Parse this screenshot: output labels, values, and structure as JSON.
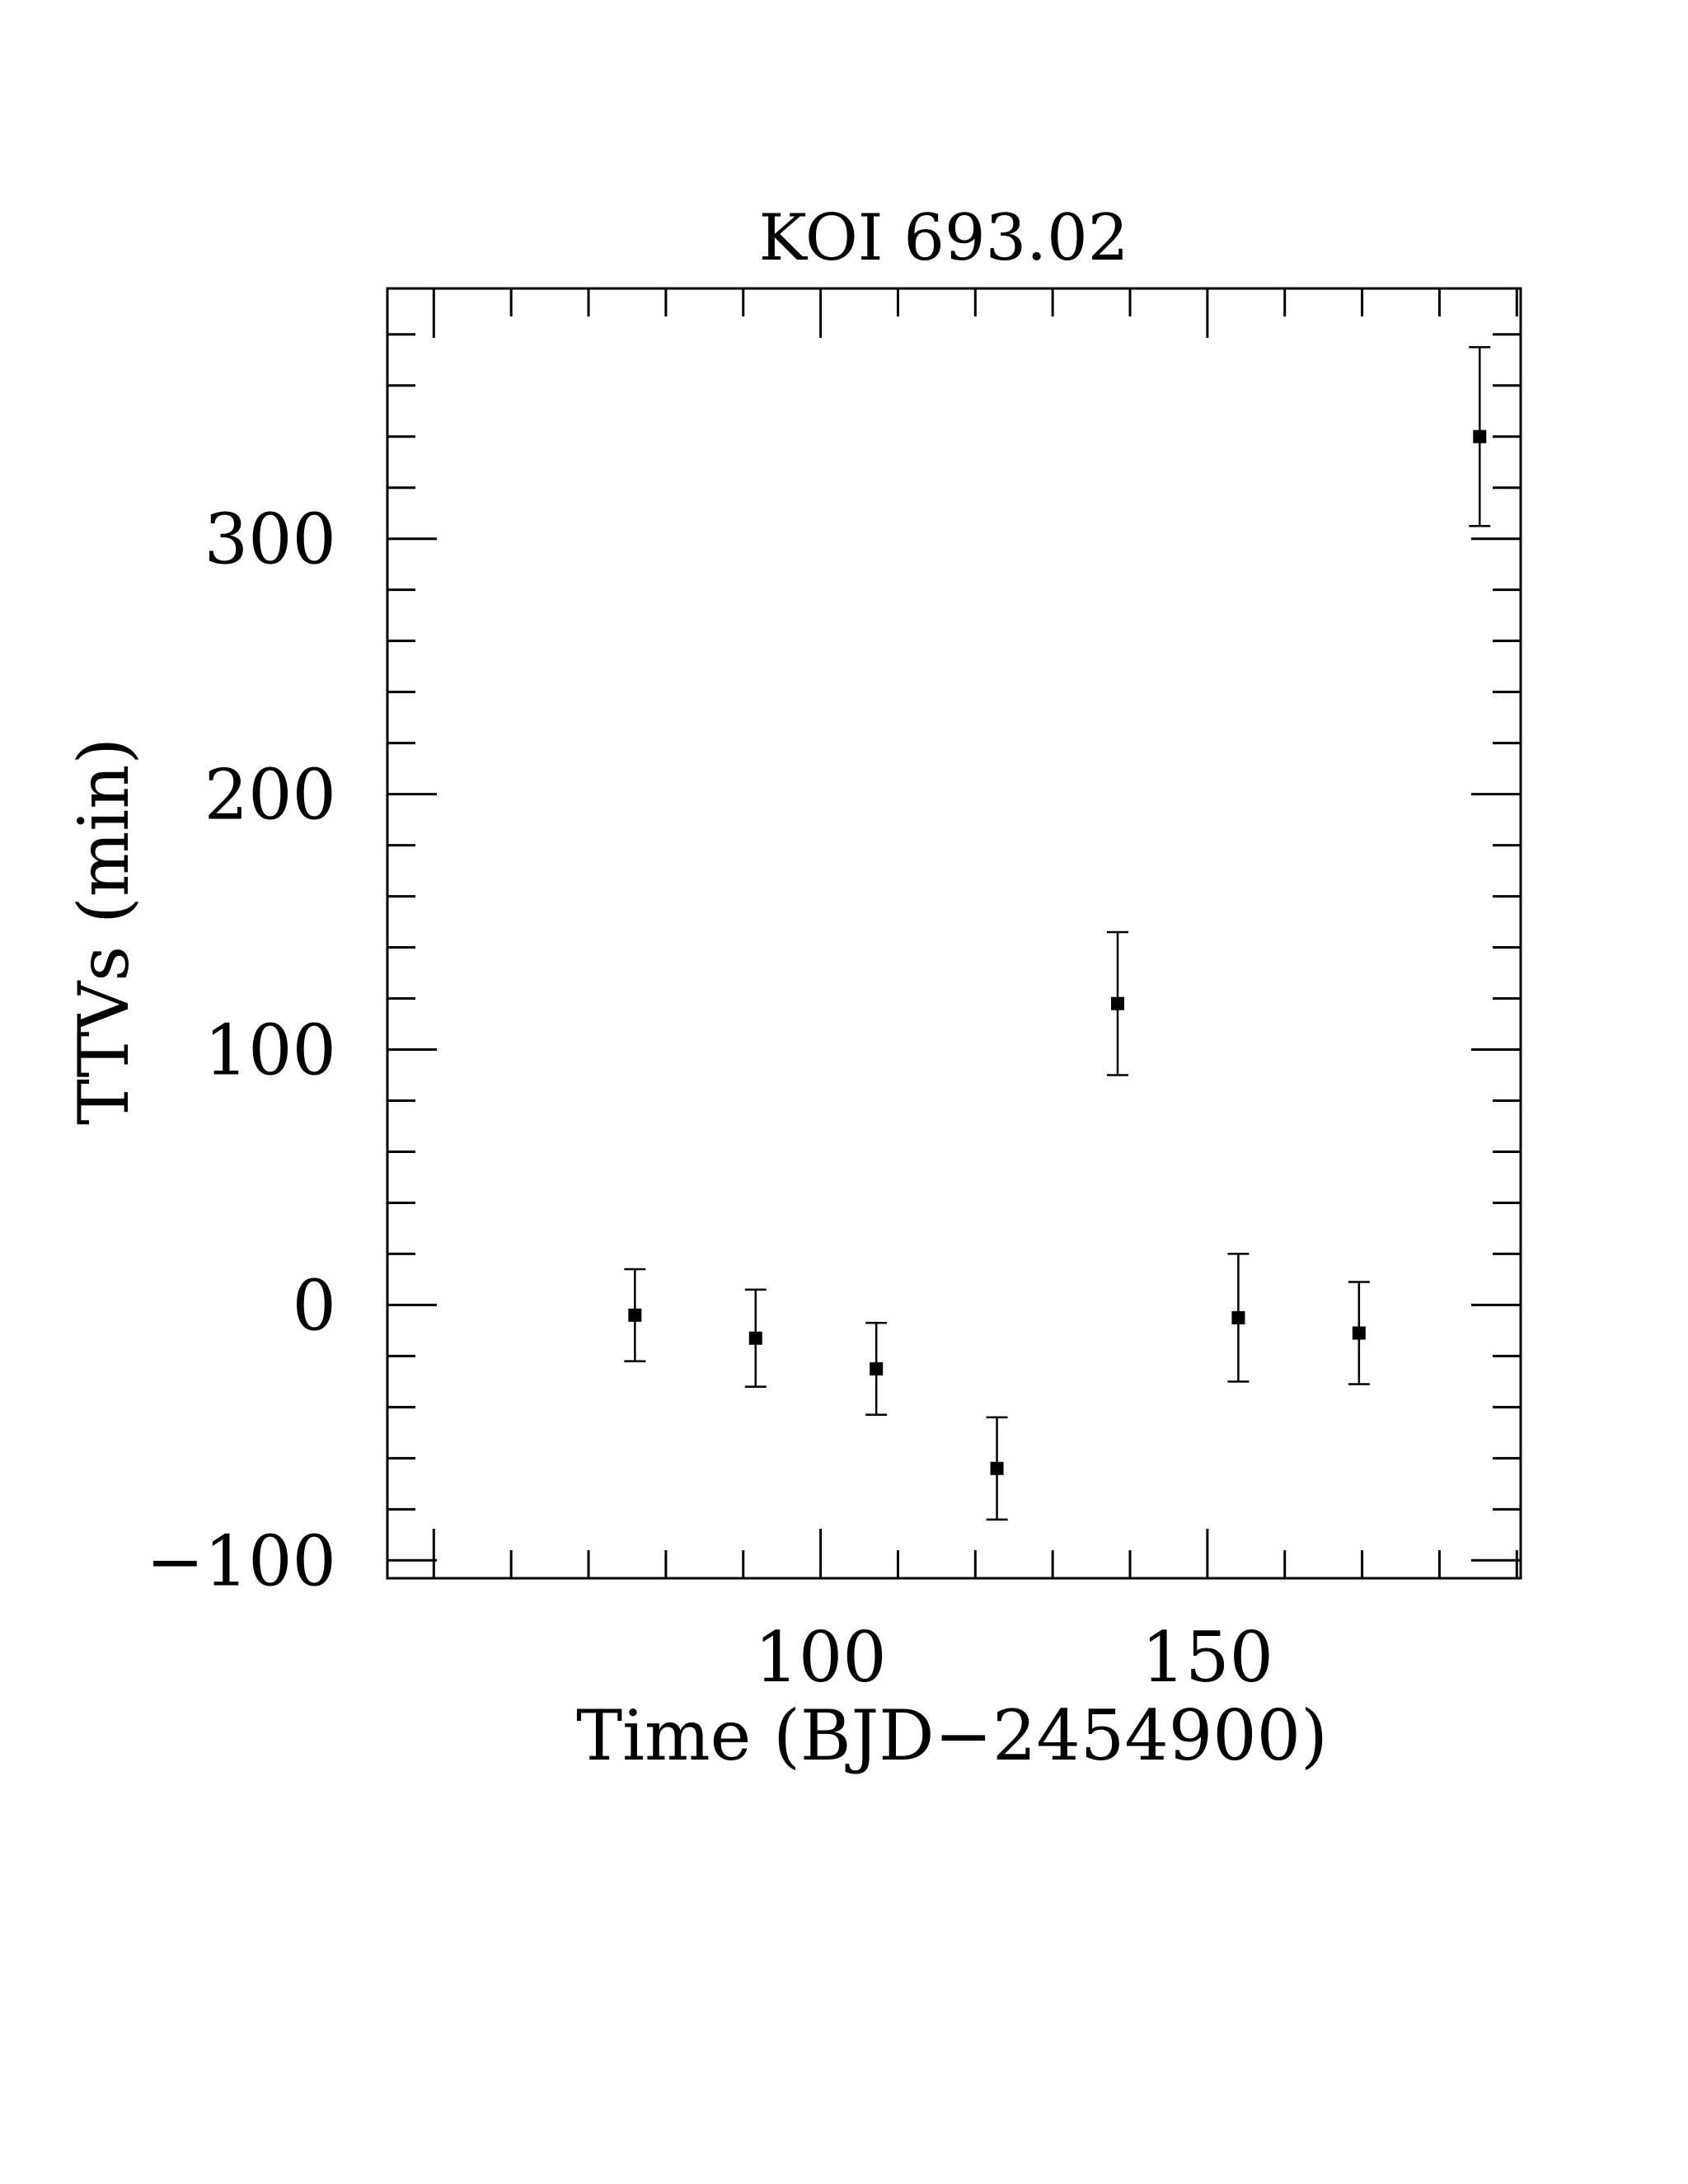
{
  "chart_data": {
    "type": "scatter",
    "title": "KOI 693.02",
    "xlabel": "Time (BJD−2454900)",
    "ylabel": "TTVs (min)",
    "xlim": [
      44,
      190.5
    ],
    "ylim": [
      -107,
      398
    ],
    "x_major_ticks": [
      50,
      100,
      150
    ],
    "x_tick_labels": [
      "",
      "100",
      "150"
    ],
    "x_minor_step": 10,
    "y_major_ticks": [
      -100,
      0,
      100,
      200,
      300
    ],
    "y_tick_labels": [
      "−100",
      "0",
      "100",
      "200",
      "300"
    ],
    "y_minor_step": 20,
    "grid": false,
    "legend": "none",
    "marker": "filled-square",
    "points": [
      {
        "x": 76,
        "y": -4,
        "yerr": 18
      },
      {
        "x": 91.6,
        "y": -13,
        "yerr": 19
      },
      {
        "x": 107.2,
        "y": -25,
        "yerr": 18
      },
      {
        "x": 122.8,
        "y": -64,
        "yerr": 20
      },
      {
        "x": 138.4,
        "y": 118,
        "yerr": 28
      },
      {
        "x": 154,
        "y": -5,
        "yerr": 25
      },
      {
        "x": 169.6,
        "y": -11,
        "yerr": 20
      },
      {
        "x": 185.2,
        "y": 340,
        "yerr": 35
      }
    ]
  }
}
